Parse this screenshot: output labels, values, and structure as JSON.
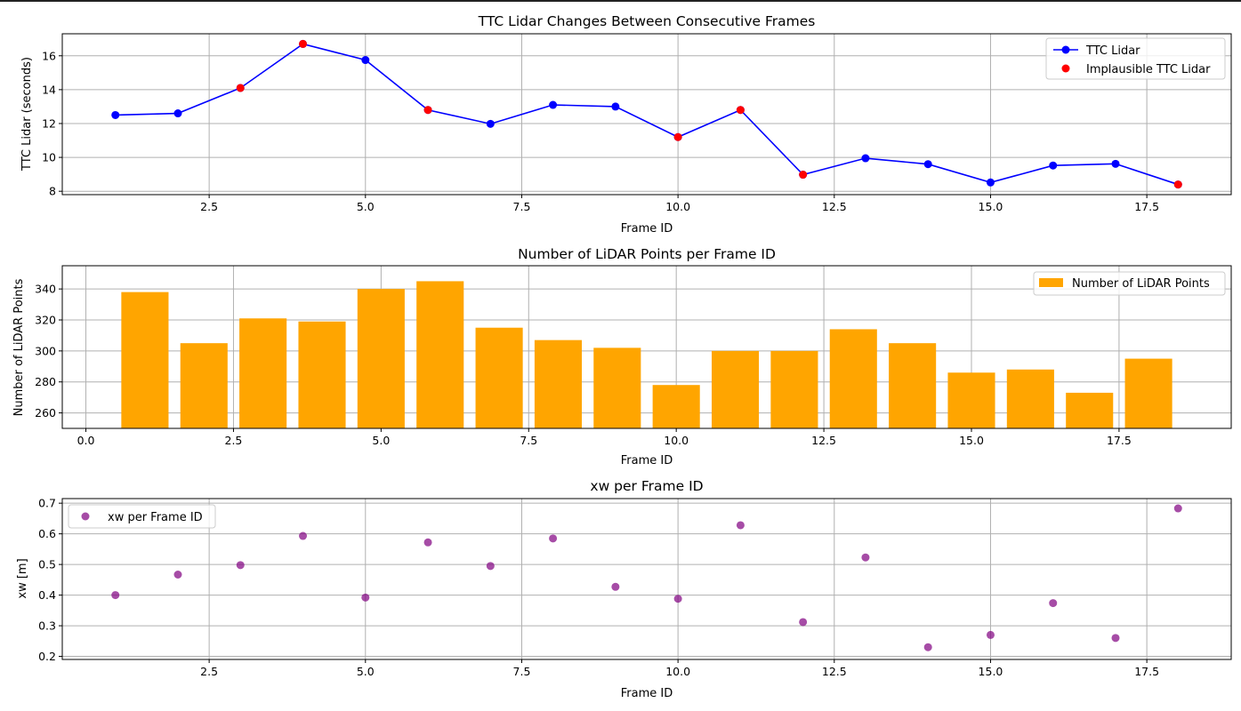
{
  "colors": {
    "line": "#0000ff",
    "implausible": "#ff0000",
    "bar": "#ffa500",
    "scatter": "#800080",
    "grid": "#b0b0b0"
  },
  "chart_data": [
    {
      "type": "line",
      "title": "TTC Lidar Changes Between Consecutive Frames",
      "xlabel": "Frame ID",
      "ylabel": "TTC Lidar (seconds)",
      "xlim": [
        0.15,
        18.85
      ],
      "ylim": [
        7.8,
        17.3
      ],
      "xticks": [
        2.5,
        5.0,
        7.5,
        10.0,
        12.5,
        15.0,
        17.5
      ],
      "xtick_labels": [
        "2.5",
        "5.0",
        "7.5",
        "10.0",
        "12.5",
        "15.0",
        "17.5"
      ],
      "yticks": [
        8,
        10,
        12,
        14,
        16
      ],
      "ytick_labels": [
        "8",
        "10",
        "12",
        "14",
        "16"
      ],
      "grid": true,
      "legend": "upper-right",
      "series": [
        {
          "name": "TTC Lidar",
          "kind": "line-markers",
          "x": [
            1,
            2,
            3,
            4,
            5,
            6,
            7,
            8,
            9,
            10,
            11,
            12,
            13,
            14,
            15,
            16,
            17,
            18
          ],
          "y": [
            12.5,
            12.6,
            14.1,
            16.7,
            15.75,
            12.8,
            11.98,
            13.1,
            13.0,
            11.2,
            12.8,
            8.98,
            9.95,
            9.6,
            8.52,
            9.52,
            9.62,
            8.4
          ]
        },
        {
          "name": "Implausible TTC Lidar",
          "kind": "scatter",
          "x": [
            3,
            4,
            6,
            10,
            11,
            12,
            18
          ],
          "y": [
            14.1,
            16.7,
            12.8,
            11.2,
            12.8,
            8.98,
            8.4
          ]
        }
      ]
    },
    {
      "type": "bar",
      "title": "Number of LiDAR Points per Frame ID",
      "xlabel": "Frame ID",
      "ylabel": "Number of LiDAR Points",
      "xlim": [
        -0.4,
        19.4
      ],
      "ylim": [
        250,
        355
      ],
      "bar_width": 0.8,
      "xticks": [
        0.0,
        2.5,
        5.0,
        7.5,
        10.0,
        12.5,
        15.0,
        17.5
      ],
      "xtick_labels": [
        "0.0",
        "2.5",
        "5.0",
        "7.5",
        "10.0",
        "12.5",
        "15.0",
        "17.5"
      ],
      "yticks": [
        260,
        280,
        300,
        320,
        340
      ],
      "ytick_labels": [
        "260",
        "280",
        "300",
        "320",
        "340"
      ],
      "grid": true,
      "legend": "upper-right",
      "series": [
        {
          "name": "Number of LiDAR Points",
          "x": [
            1,
            2,
            3,
            4,
            5,
            6,
            7,
            8,
            9,
            10,
            11,
            12,
            13,
            14,
            15,
            16,
            17,
            18
          ],
          "values": [
            338,
            305,
            321,
            319,
            340,
            345,
            315,
            307,
            302,
            278,
            300,
            300,
            314,
            305,
            286,
            288,
            273,
            295
          ]
        }
      ]
    },
    {
      "type": "scatter",
      "title": "xw per Frame ID",
      "xlabel": "Frame ID",
      "ylabel": "xw [m]",
      "xlim": [
        0.15,
        18.85
      ],
      "ylim": [
        0.19,
        0.715
      ],
      "xticks": [
        2.5,
        5.0,
        7.5,
        10.0,
        12.5,
        15.0,
        17.5
      ],
      "xtick_labels": [
        "2.5",
        "5.0",
        "7.5",
        "10.0",
        "12.5",
        "15.0",
        "17.5"
      ],
      "yticks": [
        0.2,
        0.3,
        0.4,
        0.5,
        0.6,
        0.7
      ],
      "ytick_labels": [
        "0.2",
        "0.3",
        "0.4",
        "0.5",
        "0.6",
        "0.7"
      ],
      "grid": true,
      "legend": "upper-left",
      "series": [
        {
          "name": "xw per Frame ID",
          "x": [
            1,
            2,
            3,
            4,
            5,
            6,
            7,
            8,
            9,
            10,
            11,
            12,
            13,
            14,
            15,
            16,
            17,
            18
          ],
          "y": [
            0.4,
            0.467,
            0.498,
            0.593,
            0.392,
            0.572,
            0.495,
            0.585,
            0.427,
            0.388,
            0.628,
            0.312,
            0.523,
            0.23,
            0.27,
            0.374,
            0.26,
            0.683
          ]
        }
      ]
    }
  ]
}
